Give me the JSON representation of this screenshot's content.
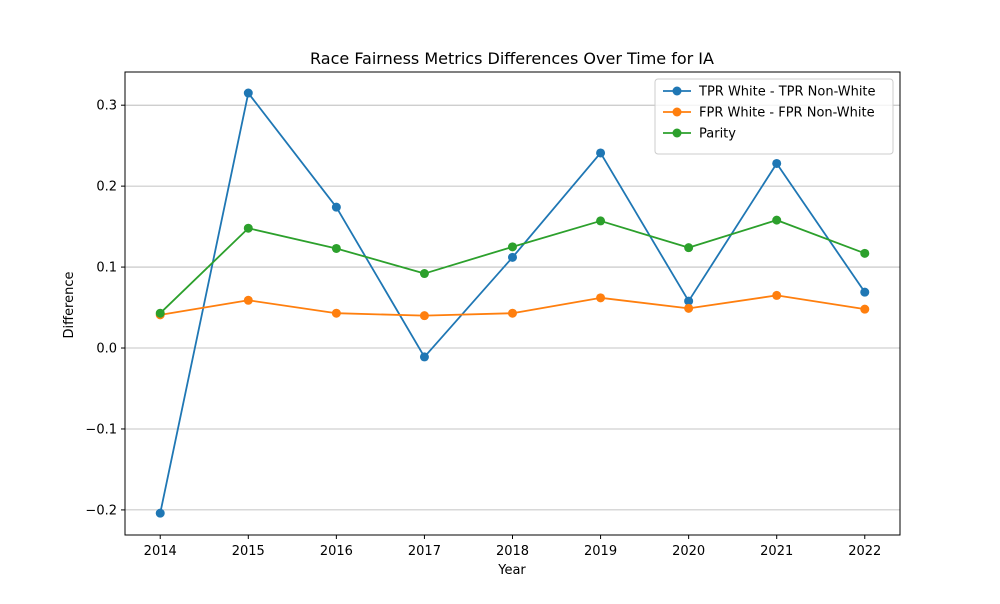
{
  "chart_data": {
    "type": "line",
    "title": "Race Fairness Metrics Differences Over Time for IA",
    "xlabel": "Year",
    "ylabel": "Difference",
    "x": [
      2014,
      2015,
      2016,
      2017,
      2018,
      2019,
      2020,
      2021,
      2022
    ],
    "xticks": [
      "2014",
      "2015",
      "2016",
      "2017",
      "2018",
      "2019",
      "2020",
      "2021",
      "2022"
    ],
    "yticks": [
      -0.2,
      -0.1,
      0.0,
      0.1,
      0.2,
      0.3
    ],
    "ytick_labels": [
      "−0.2",
      "−0.1",
      "0.0",
      "0.1",
      "0.2",
      "0.3"
    ],
    "xlim": [
      2013.6,
      2022.4
    ],
    "ylim": [
      -0.231,
      0.341
    ],
    "grid": "y-axis",
    "legend_position": "top-right",
    "series": [
      {
        "name": "TPR White - TPR Non-White",
        "color": "#1f77b4",
        "values": [
          -0.204,
          0.315,
          0.174,
          -0.011,
          0.112,
          0.241,
          0.058,
          0.228,
          0.069
        ]
      },
      {
        "name": "FPR White - FPR Non-White",
        "color": "#ff7f0e",
        "values": [
          0.041,
          0.059,
          0.043,
          0.04,
          0.043,
          0.062,
          0.049,
          0.065,
          0.048
        ]
      },
      {
        "name": "Parity",
        "color": "#2ca02c",
        "values": [
          0.043,
          0.148,
          0.123,
          0.092,
          0.125,
          0.157,
          0.124,
          0.158,
          0.117
        ]
      }
    ]
  }
}
